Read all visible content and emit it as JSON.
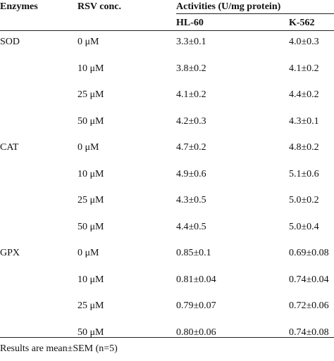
{
  "table": {
    "headers": {
      "enzymes": "Enzymes",
      "rsv_conc": "RSV conc.",
      "activities": "Activities (U/mg protein)",
      "hl60": "HL-60",
      "k562": "K-562"
    },
    "rows": [
      {
        "enzyme": "SOD",
        "conc": "0 μM",
        "hl60": "3.3±0.1",
        "k562": "4.0±0.3"
      },
      {
        "enzyme": "",
        "conc": "10 μM",
        "hl60": "3.8±0.2",
        "k562": "4.1±0.2"
      },
      {
        "enzyme": "",
        "conc": "25 μM",
        "hl60": "4.1±0.2",
        "k562": "4.4±0.2"
      },
      {
        "enzyme": "",
        "conc": "50 μM",
        "hl60": "4.2±0.3",
        "k562": "4.3±0.1"
      },
      {
        "enzyme": "CAT",
        "conc": "0 μM",
        "hl60": "4.7±0.2",
        "k562": "4.8±0.2"
      },
      {
        "enzyme": "",
        "conc": "10 μM",
        "hl60": "4.9±0.6",
        "k562": "5.1±0.6"
      },
      {
        "enzyme": "",
        "conc": "25 μM",
        "hl60": "4.3±0.5",
        "k562": "5.0±0.2"
      },
      {
        "enzyme": "",
        "conc": "50 μM",
        "hl60": "4.4±0.5",
        "k562": "5.0±0.4"
      },
      {
        "enzyme": "GPX",
        "conc": "0 μM",
        "hl60": "0.85±0.1",
        "k562": "0.69±0.08"
      },
      {
        "enzyme": "",
        "conc": "10 μM",
        "hl60": "0.81±0.04",
        "k562": "0.74±0.04"
      },
      {
        "enzyme": "",
        "conc": "25 μM",
        "hl60": "0.79±0.07",
        "k562": "0.72±0.06"
      },
      {
        "enzyme": "",
        "conc": "50 μM",
        "hl60": "0.80±0.06",
        "k562": "0.74±0.08"
      }
    ],
    "footnote": "Results are mean±SEM (n=5)"
  }
}
